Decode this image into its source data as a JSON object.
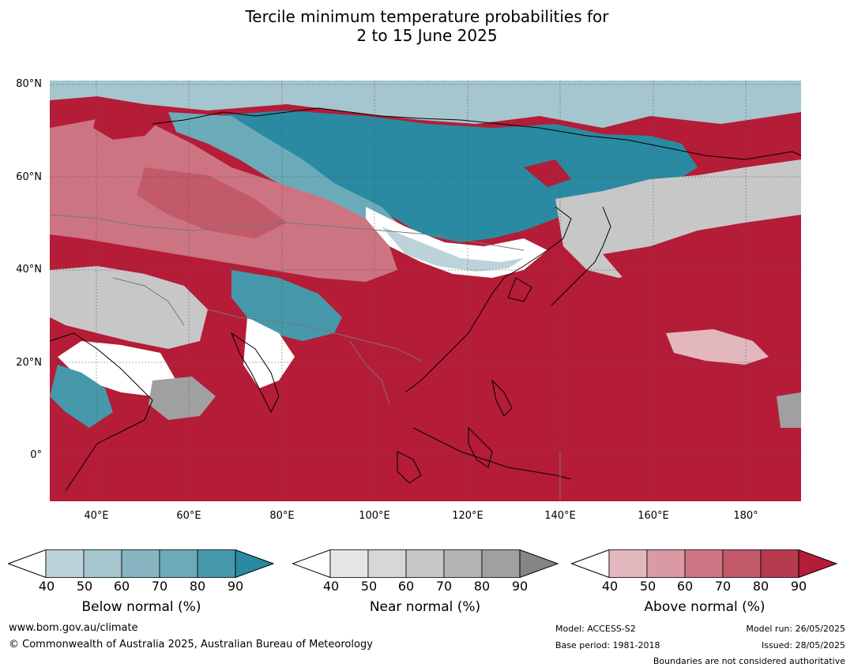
{
  "title": {
    "line1": "Tercile minimum temperature probabilities for",
    "line2": "2 to 15 June 2025"
  },
  "map": {
    "lat_labels": [
      "80°N",
      "60°N",
      "40°N",
      "20°N",
      "0°"
    ],
    "lon_labels": [
      "40°E",
      "60°E",
      "80°E",
      "100°E",
      "120°E",
      "140°E",
      "160°E",
      "180°"
    ],
    "extent": {
      "lon_min": 30,
      "lon_max": 192,
      "lat_min": -10,
      "lat_max": 80
    }
  },
  "legend": {
    "below": {
      "label": "Below normal (%)",
      "ticks": [
        "40",
        "50",
        "60",
        "70",
        "80",
        "90"
      ],
      "colors": [
        "#ffffff",
        "#bdd3da",
        "#a5c6ce",
        "#89b5c2",
        "#6babb9",
        "#4599ab",
        "#2a8aa1"
      ]
    },
    "near": {
      "label": "Near normal (%)",
      "ticks": [
        "40",
        "50",
        "60",
        "70",
        "80",
        "90"
      ],
      "colors": [
        "#ffffff",
        "#e6e6e6",
        "#d7d7d7",
        "#c7c7c7",
        "#b4b4b4",
        "#a0a0a0",
        "#858585"
      ]
    },
    "above": {
      "label": "Above normal (%)",
      "ticks": [
        "40",
        "50",
        "60",
        "70",
        "80",
        "90"
      ],
      "colors": [
        "#ffffff",
        "#e2b8be",
        "#d99aa3",
        "#cc7482",
        "#c25a6a",
        "#b73a4f",
        "#b51c37"
      ]
    }
  },
  "footer": {
    "website": "www.bom.gov.au/climate",
    "copyright": "© Commonwealth of Australia 2025, Australian Bureau of Meteorology",
    "model": "Model: ACCESS-S2",
    "base_period": "Base period: 1981-2018",
    "model_run": "Model run: 26/05/2025",
    "issued": "Issued: 28/05/2025",
    "disclaimer": "Boundaries are not considered authoritative"
  }
}
